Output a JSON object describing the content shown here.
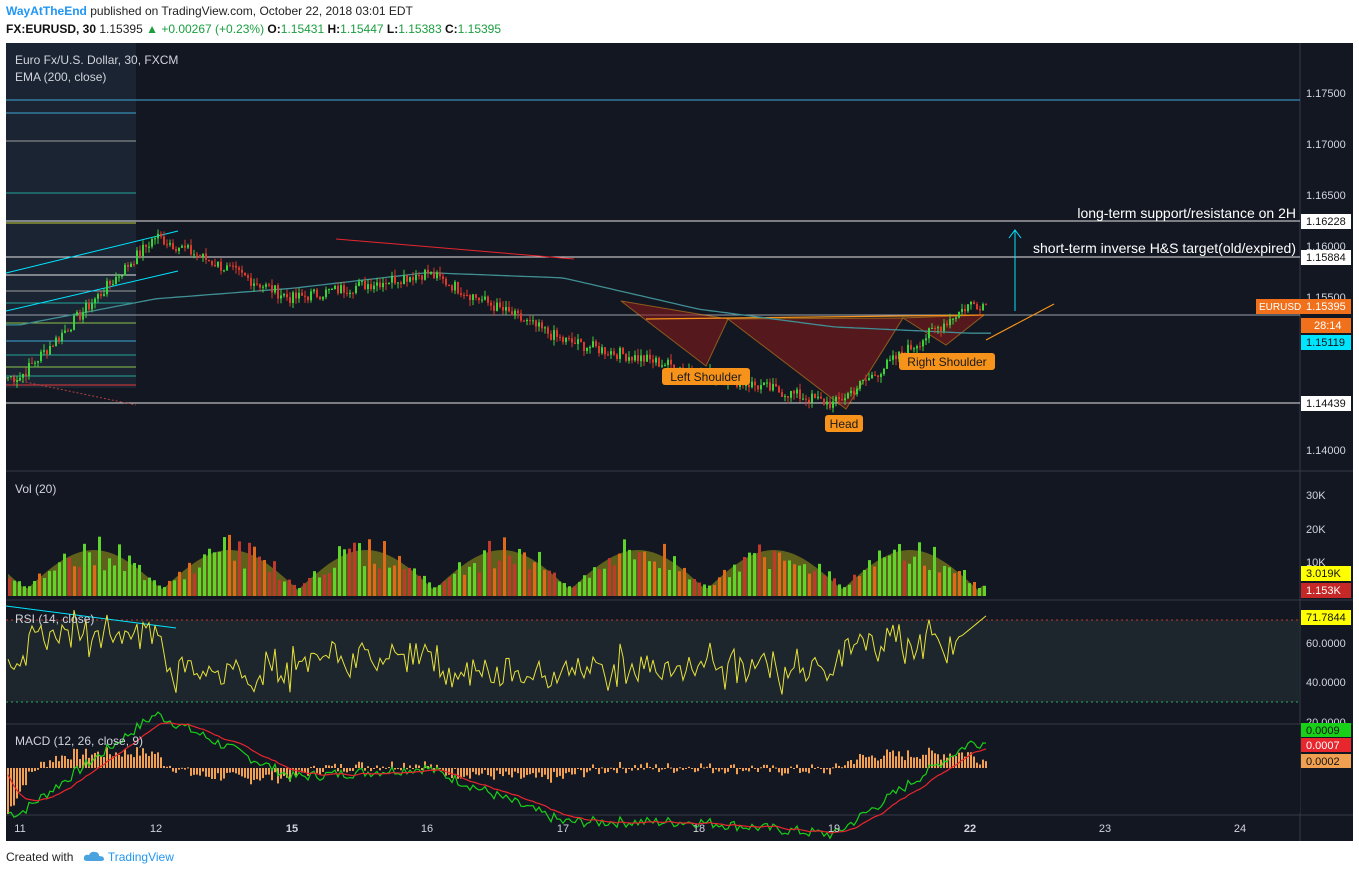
{
  "header": {
    "author": "WayAtTheEnd",
    "published": "published on TradingView.com, October 22, 2018 03:01 EDT",
    "symbol": "FX:EURUSD, 30",
    "last": "1.15395",
    "change": "▲ +0.00267 (+0.23%)",
    "o_label": "O:",
    "o_val": "1.15431",
    "h_label": "H:",
    "h_val": "1.15447",
    "l_label": "L:",
    "l_val": "1.15383",
    "c_label": "C:",
    "c_val": "1.15395"
  },
  "panes": {
    "main_title": "Euro Fx/U.S. Dollar, 30, FXCM",
    "ema_title": "EMA (200, close)",
    "vol_title": "Vol (20)",
    "rsi_title": "RSI (14, close)",
    "macd_title": "MACD (12, 26, close, 9)"
  },
  "annotations": {
    "support_text": "long-term support/resistance on 2H",
    "target_text": "short-term inverse H&S target(old/expired)",
    "left_shoulder": "Left Shoulder",
    "head": "Head",
    "right_shoulder": "Right Shoulder"
  },
  "price_axis": {
    "ticks": [
      "1.17500",
      "1.17000",
      "1.16500",
      "1.16000",
      "1.15500",
      "1.14000"
    ],
    "badges": {
      "support": "1.16228",
      "target": "1.15884",
      "symbol": "EURUSD",
      "current": "1.15395",
      "countdown": "28:14",
      "ema": "1.15119",
      "low": "1.14439"
    }
  },
  "vol_axis": {
    "ticks": [
      "30K",
      "20K",
      "10K"
    ],
    "badge_vol": "3.019K",
    "badge_ma": "1.153K"
  },
  "rsi_axis": {
    "ticks": [
      "60.0000",
      "40.0000",
      "20.0000"
    ],
    "badge": "71.7844"
  },
  "macd_axis": {
    "badge_macd": "0.0009",
    "badge_signal": "0.0007",
    "badge_hist": "0.0002"
  },
  "time_axis": {
    "ticks": [
      "11",
      "12",
      "15",
      "16",
      "17",
      "18",
      "19",
      "22",
      "23",
      "24"
    ]
  },
  "colors": {
    "background": "#131722",
    "up": "#26a69a",
    "candle_up": "#3bd33b",
    "candle_down": "#e0392b",
    "ema": "#3f8f94",
    "annotation": "#f7931a",
    "rsi": "#e8e23a",
    "macd": "#18d018",
    "signal": "#e8262e"
  },
  "footer": {
    "created_with": "Created with",
    "brand": "TradingView"
  },
  "chart_data": {
    "type": "line",
    "title": "Euro Fx/U.S. Dollar, 30, FXCM",
    "x": [
      "11",
      "12",
      "15",
      "16",
      "17",
      "18",
      "19",
      "22"
    ],
    "series": [
      {
        "name": "EURUSD",
        "values": [
          1.147,
          1.1605,
          1.1545,
          1.157,
          1.1505,
          1.1475,
          1.1444,
          1.154
        ]
      },
      {
        "name": "EMA (200, close)",
        "values": [
          1.152,
          1.1545,
          1.1555,
          1.157,
          1.1565,
          1.1535,
          1.1518,
          1.1512
        ]
      }
    ],
    "levels": [
      1.16228,
      1.15884,
      1.14439
    ],
    "ylim": [
      1.138,
      1.179
    ],
    "rsi_last": 71.7844,
    "volume_last": 3019,
    "volume_ma_last": 1153
  }
}
